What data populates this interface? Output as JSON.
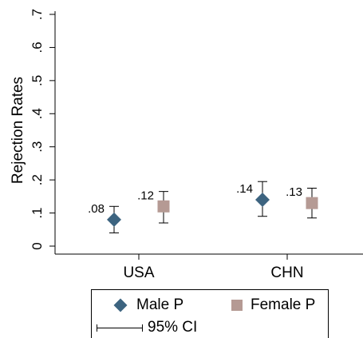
{
  "chart_data": {
    "type": "scatter",
    "ylabel": "Rejection Rates",
    "xlabel": "",
    "ylim": [
      0,
      0.7
    ],
    "yticks": [
      0,
      0.1,
      0.2,
      0.3,
      0.4,
      0.5,
      0.6,
      0.7
    ],
    "ytick_labels": [
      "0",
      ".1",
      ".2",
      ".3",
      ".4",
      ".5",
      ".6",
      ".7"
    ],
    "categories": [
      "USA",
      "CHN"
    ],
    "grid": false,
    "legend_position": "bottom",
    "series": [
      {
        "name": "Male P",
        "marker": "diamond",
        "color": "#3d6480",
        "values": [
          0.08,
          0.14
        ],
        "ci_low": [
          0.04,
          0.09
        ],
        "ci_high": [
          0.12,
          0.195
        ],
        "data_labels": [
          ".08",
          ".14"
        ]
      },
      {
        "name": "Female P",
        "marker": "square",
        "color": "#b59a94",
        "values": [
          0.12,
          0.13
        ],
        "ci_low": [
          0.07,
          0.085
        ],
        "ci_high": [
          0.165,
          0.175
        ],
        "data_labels": [
          ".12",
          ".13"
        ]
      }
    ]
  },
  "legend": {
    "ci_label": "95% CI"
  }
}
